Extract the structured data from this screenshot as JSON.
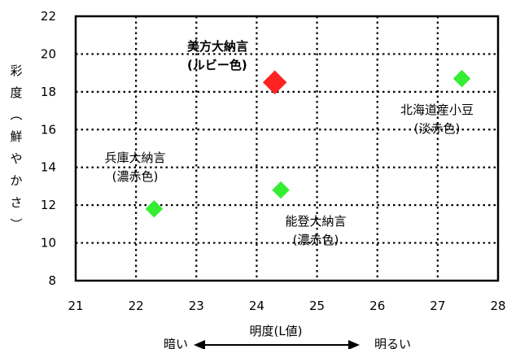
{
  "chart_data": {
    "type": "scatter",
    "xlabel": "明度(L値)",
    "ylabel_chars": [
      "彩",
      "度",
      "︵",
      "鮮",
      "や",
      "か",
      "さ",
      "︶"
    ],
    "xlim": [
      21,
      28
    ],
    "ylim": [
      8,
      22
    ],
    "x_ticks": [
      21,
      22,
      23,
      24,
      25,
      26,
      27,
      28
    ],
    "y_ticks": [
      8,
      10,
      12,
      14,
      16,
      18,
      20,
      22
    ],
    "grid": "dotted",
    "points": [
      {
        "x": 22.3,
        "y": 11.8,
        "color": "#33ee33",
        "marker": "diamond",
        "label_lines": [
          "兵庫大納言",
          "(濃赤色)"
        ]
      },
      {
        "x": 24.3,
        "y": 18.5,
        "color": "#ff2222",
        "marker": "diamond-large",
        "label_lines": [
          "美方大納言",
          "(ルビー色)"
        ]
      },
      {
        "x": 24.4,
        "y": 12.8,
        "color": "#33ee33",
        "marker": "diamond",
        "label_lines": [
          "能登大納言",
          "(濃赤色)"
        ]
      },
      {
        "x": 27.4,
        "y": 18.7,
        "color": "#33ee33",
        "marker": "diamond",
        "label_lines": [
          "北海道産小豆",
          "(淡赤色)"
        ]
      }
    ],
    "scale_arrow": {
      "left": "暗い",
      "right": "明るい"
    }
  }
}
